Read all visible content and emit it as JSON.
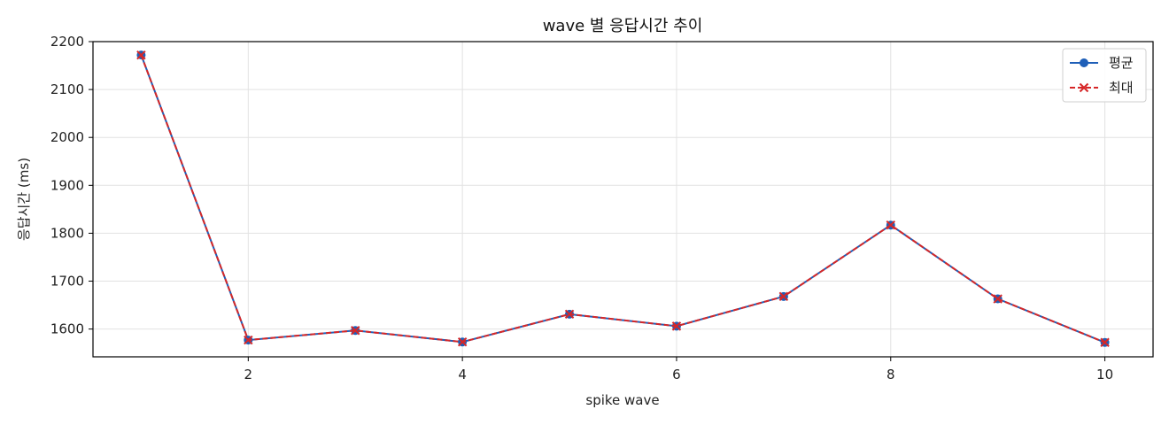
{
  "chart_data": {
    "type": "line",
    "title": "wave 별 응답시간 추이",
    "xlabel": "spike wave",
    "ylabel": "응답시간 (ms)",
    "x": [
      1,
      2,
      3,
      4,
      5,
      6,
      7,
      8,
      9,
      10
    ],
    "xticks": [
      "2",
      "4",
      "6",
      "8",
      "10"
    ],
    "yticks": [
      "1600",
      "1700",
      "1800",
      "1900",
      "2000",
      "2100",
      "2200"
    ],
    "xlim": [
      0.55,
      10.45
    ],
    "ylim": [
      1542,
      2200
    ],
    "grid": true,
    "legend_position": "top-right",
    "series": [
      {
        "name": "평균",
        "values": [
          2172,
          1577,
          1597,
          1573,
          1631,
          1606,
          1668,
          1817,
          1663,
          1572
        ],
        "color": "#1f5fb8",
        "linestyle": "solid",
        "marker": "circle"
      },
      {
        "name": "최대",
        "values": [
          2172,
          1577,
          1597,
          1573,
          1631,
          1606,
          1668,
          1817,
          1663,
          1572
        ],
        "color": "#d62728",
        "linestyle": "dashed",
        "marker": "x"
      }
    ]
  }
}
